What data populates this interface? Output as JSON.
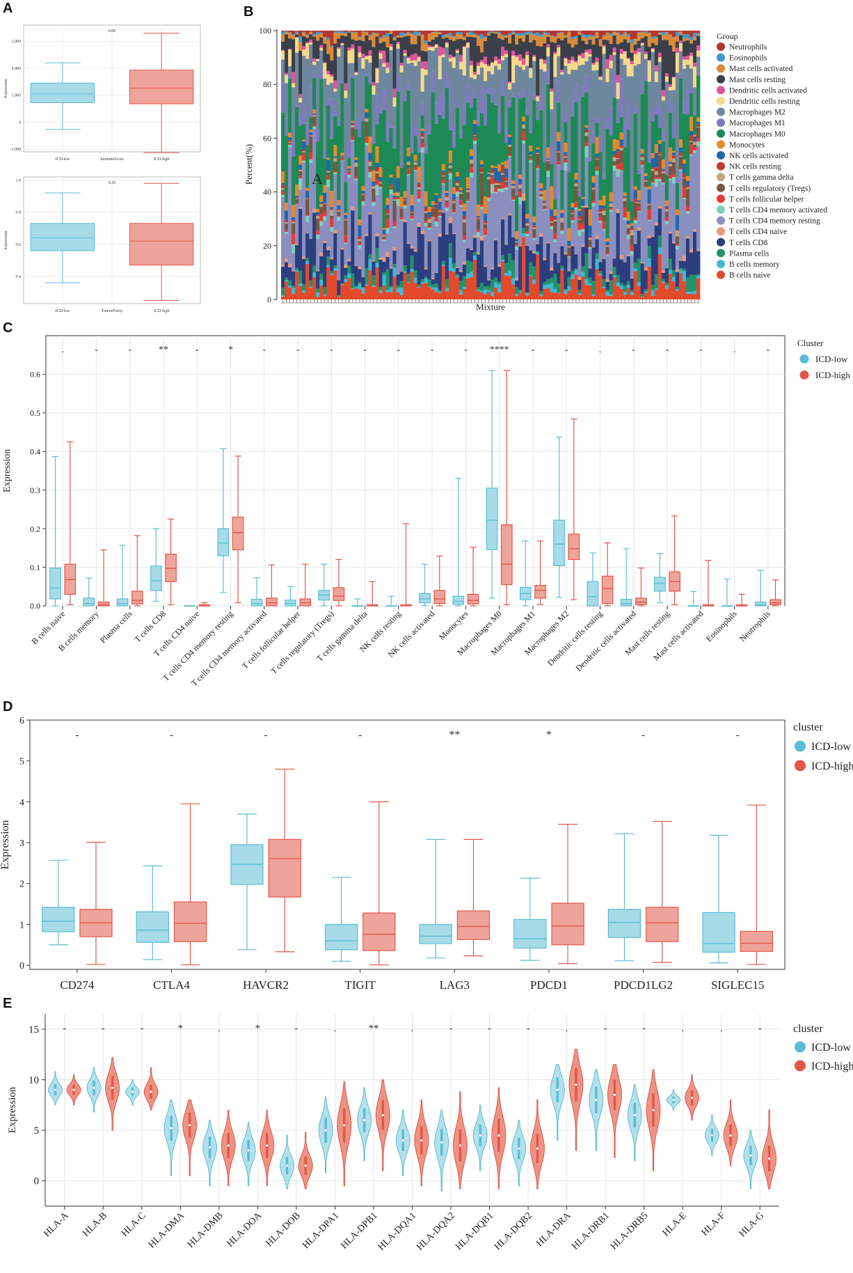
{
  "panel_labels": [
    "A",
    "B",
    "C",
    "D",
    "E"
  ],
  "colors": {
    "low": "#5bbcd6",
    "low_fill": "#a6dbe7",
    "high": "#e2574a",
    "high_fill": "#eea49a",
    "grid": "#e6e6e6",
    "axis": "#333333"
  },
  "chart_data": [
    {
      "id": "A1",
      "type": "box",
      "title": "",
      "ylabel": "Expression",
      "xlabel": "ImmuneScore",
      "ylim": [
        -1100,
        3600
      ],
      "yticks": [
        -1000,
        0,
        1000,
        2000,
        3000
      ],
      "yticklabels": [
        "-1,000",
        "0",
        "1,000",
        "2,000",
        "3,000"
      ],
      "pvalue": "0.08",
      "groups": [
        "ICD-low",
        "ICD-high"
      ],
      "boxes": [
        {
          "group": "ICD-low",
          "min": -270,
          "q1": 720,
          "median": 1050,
          "q3": 1450,
          "max": 2200
        },
        {
          "group": "ICD-high",
          "min": -1130,
          "q1": 680,
          "median": 1260,
          "q3": 1930,
          "max": 3300
        }
      ]
    },
    {
      "id": "A2",
      "type": "box",
      "ylabel": "Expression",
      "xlabel": "TumorPurity",
      "ylim": [
        0.23,
        1.02
      ],
      "yticks": [
        0.4,
        0.6,
        0.8,
        1.0
      ],
      "yticklabels": [
        "0.4",
        "0.6",
        "0.8",
        "1.0"
      ],
      "pvalue": "0.26",
      "groups": [
        "ICD-low",
        "ICD-high"
      ],
      "boxes": [
        {
          "group": "ICD-low",
          "min": 0.36,
          "q1": 0.56,
          "median": 0.64,
          "q3": 0.73,
          "max": 0.92
        },
        {
          "group": "ICD-high",
          "min": 0.25,
          "q1": 0.47,
          "median": 0.62,
          "q3": 0.73,
          "max": 0.98
        }
      ]
    },
    {
      "id": "B",
      "type": "stacked_bar",
      "ylabel": "Percent(%)",
      "xlabel": "Mixture",
      "ylim": [
        0,
        100
      ],
      "yticks": [
        0,
        20,
        40,
        60,
        80,
        100
      ],
      "annotation": "A",
      "legend_title": "Group",
      "n_samples": 120,
      "series": [
        {
          "name": "Neutrophils",
          "color": "#b5362e",
          "mean": 1
        },
        {
          "name": "Eosinophils",
          "color": "#3d9ad1",
          "mean": 0.5
        },
        {
          "name": "Mast cells activated",
          "color": "#d98b3a",
          "mean": 1.5
        },
        {
          "name": "Mast cells resting",
          "color": "#3a3f4a",
          "mean": 5
        },
        {
          "name": "Dendritic cells activated",
          "color": "#e0559a",
          "mean": 1
        },
        {
          "name": "Dendritic cells resting",
          "color": "#f5d98c",
          "mean": 3
        },
        {
          "name": "Macrophages M2",
          "color": "#6f879e",
          "mean": 14
        },
        {
          "name": "Macrophages M1",
          "color": "#7f7bbf",
          "mean": 4
        },
        {
          "name": "Macrophages M0",
          "color": "#1d8a55",
          "mean": 16
        },
        {
          "name": "Monocytes",
          "color": "#e38a2a",
          "mean": 2
        },
        {
          "name": "NK cells activated",
          "color": "#2366a8",
          "mean": 1.5
        },
        {
          "name": "NK cells resting",
          "color": "#c13b2c",
          "mean": 0.5
        },
        {
          "name": "T cells gamma delta",
          "color": "#bfa583",
          "mean": 0.5
        },
        {
          "name": "T cells regulatory (Tregs)",
          "color": "#7a5540",
          "mean": 2.5
        },
        {
          "name": "T cells follicular helper",
          "color": "#e43a36",
          "mean": 1
        },
        {
          "name": "T cells CD4 memory activated",
          "color": "#7ecfbf",
          "mean": 1
        },
        {
          "name": "T cells CD4 memory resting",
          "color": "#8a8fbf",
          "mean": 16
        },
        {
          "name": "T cells CD4 naive",
          "color": "#e89a7c",
          "mean": 0.5
        },
        {
          "name": "T cells CD8",
          "color": "#2d3e7e",
          "mean": 8
        },
        {
          "name": "Plasma cells",
          "color": "#22926a",
          "mean": 2
        },
        {
          "name": "B cells memory",
          "color": "#3fb8d4",
          "mean": 1
        },
        {
          "name": "B cells naive",
          "color": "#e34a2c",
          "mean": 5
        }
      ]
    },
    {
      "id": "C",
      "type": "grouped_box",
      "ylabel": "Expression",
      "ylim": [
        0,
        0.7
      ],
      "yticks": [
        0,
        0.1,
        0.2,
        0.3,
        0.4,
        0.5,
        0.6
      ],
      "yticklabels": [
        "0.0",
        "0.1",
        "0.2",
        "0.3",
        "0.4",
        "0.5",
        "0.6"
      ],
      "legend_title": "Cluster",
      "series_names": [
        "ICD-low",
        "ICD-high"
      ],
      "categories": [
        "B cells naive",
        "B cells memory",
        "Plasma cells",
        "T cells CD8",
        "T cells CD4 naive",
        "T cells CD4 memory resting",
        "T cells CD4 memory activated",
        "T cells follicular helper",
        "T cells regulatory (Tregs)",
        "T cells gamma delta",
        "NK cells resting",
        "NK cells activated",
        "Monocytes",
        "Macrophages M0",
        "Macrophages M1",
        "Macrophages M2",
        "Dendritic cells resting",
        "Dendritic cells activated",
        "Mast cells resting",
        "Mast cells activated",
        "Eosinophils",
        "Neutrophils"
      ],
      "signif": [
        ".",
        "-",
        "-",
        "**",
        "-",
        "*",
        "-",
        "-",
        "-",
        "-",
        "-",
        "-",
        "-",
        "****",
        "-",
        "-",
        ".",
        "-",
        "-",
        "-",
        ".",
        "-"
      ],
      "low": [
        [
          0,
          0.018,
          0.046,
          0.098,
          0.387
        ],
        [
          0,
          0,
          0.006,
          0.02,
          0.072
        ],
        [
          0,
          0,
          0.006,
          0.018,
          0.157
        ],
        [
          0.012,
          0.04,
          0.065,
          0.103,
          0.2
        ],
        [
          0,
          0,
          0,
          0,
          0
        ],
        [
          0.035,
          0.13,
          0.163,
          0.2,
          0.407
        ],
        [
          0,
          0,
          0.006,
          0.017,
          0.073
        ],
        [
          0,
          0,
          0.006,
          0.015,
          0.05
        ],
        [
          0,
          0.015,
          0.028,
          0.04,
          0.108
        ],
        [
          0,
          0,
          0,
          0,
          0.018
        ],
        [
          0,
          0,
          0,
          0,
          0.025
        ],
        [
          0,
          0.008,
          0.018,
          0.032,
          0.108
        ],
        [
          0,
          0.004,
          0.012,
          0.025,
          0.33
        ],
        [
          0.02,
          0.146,
          0.222,
          0.305,
          0.61
        ],
        [
          0,
          0.016,
          0.032,
          0.048,
          0.168
        ],
        [
          0.022,
          0.104,
          0.16,
          0.222,
          0.437
        ],
        [
          0,
          0,
          0.024,
          0.063,
          0.137
        ],
        [
          0,
          0,
          0.006,
          0.017,
          0.148
        ],
        [
          0.008,
          0.038,
          0.058,
          0.074,
          0.136
        ],
        [
          0,
          0,
          0,
          0,
          0.037
        ],
        [
          0,
          0,
          0,
          0,
          0.07
        ],
        [
          0,
          0,
          0.003,
          0.01,
          0.092
        ]
      ],
      "high": [
        [
          0.003,
          0.03,
          0.068,
          0.108,
          0.425
        ],
        [
          0,
          0,
          0.003,
          0.01,
          0.145
        ],
        [
          0,
          0.005,
          0.014,
          0.038,
          0.182
        ],
        [
          0.003,
          0.063,
          0.097,
          0.134,
          0.225
        ],
        [
          0,
          0,
          0,
          0.003,
          0.008
        ],
        [
          0.008,
          0.145,
          0.19,
          0.23,
          0.388
        ],
        [
          0,
          0,
          0.008,
          0.02,
          0.106
        ],
        [
          0,
          0,
          0.008,
          0.018,
          0.108
        ],
        [
          0,
          0.014,
          0.025,
          0.047,
          0.12
        ],
        [
          0,
          0,
          0,
          0.003,
          0.063
        ],
        [
          0,
          0,
          0,
          0.003,
          0.213
        ],
        [
          0,
          0.006,
          0.018,
          0.04,
          0.129
        ],
        [
          0,
          0.005,
          0.014,
          0.03,
          0.152
        ],
        [
          0.003,
          0.055,
          0.108,
          0.21,
          0.61
        ],
        [
          0.003,
          0.02,
          0.04,
          0.053,
          0.168
        ],
        [
          0.016,
          0.12,
          0.148,
          0.186,
          0.484
        ],
        [
          0,
          0.006,
          0.045,
          0.077,
          0.163
        ],
        [
          0,
          0.003,
          0.01,
          0.02,
          0.098
        ],
        [
          0.003,
          0.038,
          0.063,
          0.088,
          0.233
        ],
        [
          0,
          0,
          0,
          0.003,
          0.118
        ],
        [
          0,
          0,
          0,
          0.003,
          0.03
        ],
        [
          0,
          0.003,
          0.008,
          0.016,
          0.067
        ]
      ]
    },
    {
      "id": "D",
      "type": "grouped_box",
      "ylabel": "Expression",
      "ylim": [
        -0.1,
        6
      ],
      "yticks": [
        0,
        1,
        2,
        3,
        4,
        5,
        6
      ],
      "yticklabels": [
        "0",
        "1",
        "2",
        "3",
        "4",
        "5",
        "6"
      ],
      "legend_title": "cluster",
      "series_names": [
        "ICD-low",
        "ICD-high"
      ],
      "categories": [
        "CD274",
        "CTLA4",
        "HAVCR2",
        "TIGIT",
        "LAG3",
        "PDCD1",
        "PDCD1LG2",
        "SIGLEC15"
      ],
      "signif": [
        "-",
        "-",
        "-",
        "-",
        "**",
        "*",
        "-",
        "-"
      ],
      "low": [
        [
          0.5,
          0.82,
          1.08,
          1.42,
          2.57
        ],
        [
          0.14,
          0.56,
          0.86,
          1.31,
          2.43
        ],
        [
          0.38,
          1.98,
          2.47,
          2.95,
          3.7
        ],
        [
          0.1,
          0.38,
          0.6,
          1.0,
          2.15
        ],
        [
          0.18,
          0.53,
          0.71,
          1.0,
          3.08
        ],
        [
          0.12,
          0.42,
          0.65,
          1.12,
          2.13
        ],
        [
          0.11,
          0.68,
          1.05,
          1.37,
          3.22
        ],
        [
          0.06,
          0.32,
          0.53,
          1.29,
          3.18
        ]
      ],
      "high": [
        [
          0.02,
          0.7,
          1.04,
          1.37,
          3.01
        ],
        [
          0.01,
          0.58,
          1.03,
          1.55,
          3.95
        ],
        [
          0.33,
          1.67,
          2.61,
          3.08,
          4.8
        ],
        [
          0.01,
          0.36,
          0.76,
          1.28,
          4.0
        ],
        [
          0.23,
          0.63,
          0.95,
          1.33,
          3.08
        ],
        [
          0.04,
          0.5,
          0.96,
          1.52,
          3.45
        ],
        [
          0.07,
          0.58,
          1.04,
          1.42,
          3.52
        ],
        [
          0.02,
          0.34,
          0.54,
          0.83,
          3.92
        ]
      ]
    },
    {
      "id": "E",
      "type": "violin",
      "ylabel": "Expression",
      "ylim": [
        -2.5,
        16.5
      ],
      "yticks": [
        0,
        5,
        10,
        15
      ],
      "yticklabels": [
        "0",
        "5",
        "10",
        "15"
      ],
      "legend_title": "cluster",
      "series_names": [
        "ICD-low",
        "ICD-high"
      ],
      "categories": [
        "HLA-A",
        "HLA-B",
        "HLA-C",
        "HLA-DMA",
        "HLA-DMB",
        "HLA-DOA",
        "HLA-DOB",
        "HLA-DPA1",
        "HLA-DPB1",
        "HLA-DQA1",
        "HLA-DQA2",
        "HLA-DQB1",
        "HLA-DQB2",
        "HLA-DRA",
        "HLA-DRB1",
        "HLA-DRB5",
        "HLA-E",
        "HLA-F",
        "HLA-G"
      ],
      "signif": [
        "-",
        "-",
        "-",
        "*",
        ".",
        "*",
        "-",
        ".",
        "**",
        ".",
        "-",
        "-",
        "-",
        ".",
        "-",
        "-",
        ".",
        ".",
        "-"
      ],
      "low": [
        [
          7.5,
          9.0,
          10.8
        ],
        [
          6.8,
          9.2,
          11.2
        ],
        [
          7.5,
          8.8,
          10.0
        ],
        [
          0.5,
          5.2,
          8.0
        ],
        [
          -0.5,
          3.3,
          6.0
        ],
        [
          -0.5,
          3.0,
          5.8
        ],
        [
          -0.8,
          1.5,
          4.5
        ],
        [
          0.8,
          5.0,
          8.3
        ],
        [
          2.0,
          6.0,
          9.2
        ],
        [
          0.5,
          4.0,
          7.0
        ],
        [
          -1.0,
          3.8,
          7.0
        ],
        [
          1.0,
          4.5,
          7.5
        ],
        [
          -0.5,
          3.2,
          6.0
        ],
        [
          4.0,
          9.0,
          11.5
        ],
        [
          3.0,
          8.0,
          11.0
        ],
        [
          2.0,
          6.5,
          9.5
        ],
        [
          7.0,
          8.0,
          9.0
        ],
        [
          2.5,
          4.5,
          6.5
        ],
        [
          -0.8,
          2.5,
          5.0
        ]
      ],
      "high": [
        [
          7.5,
          9.0,
          10.5
        ],
        [
          5.0,
          9.2,
          12.2
        ],
        [
          7.0,
          8.8,
          11.2
        ],
        [
          0.5,
          5.5,
          8.0
        ],
        [
          -0.5,
          3.5,
          7.0
        ],
        [
          -0.5,
          3.5,
          7.0
        ],
        [
          -0.8,
          1.5,
          4.8
        ],
        [
          -0.5,
          5.5,
          9.8
        ],
        [
          1.0,
          6.5,
          10.0
        ],
        [
          -0.5,
          4.0,
          8.0
        ],
        [
          -0.8,
          3.5,
          8.8
        ],
        [
          -0.8,
          4.5,
          9.2
        ],
        [
          -0.8,
          3.2,
          8.0
        ],
        [
          3.0,
          9.5,
          13.0
        ],
        [
          2.3,
          8.5,
          11.5
        ],
        [
          1.0,
          7.0,
          11.0
        ],
        [
          6.0,
          8.2,
          10.5
        ],
        [
          1.5,
          4.5,
          8.0
        ],
        [
          -0.8,
          2.2,
          7.0
        ]
      ]
    }
  ]
}
